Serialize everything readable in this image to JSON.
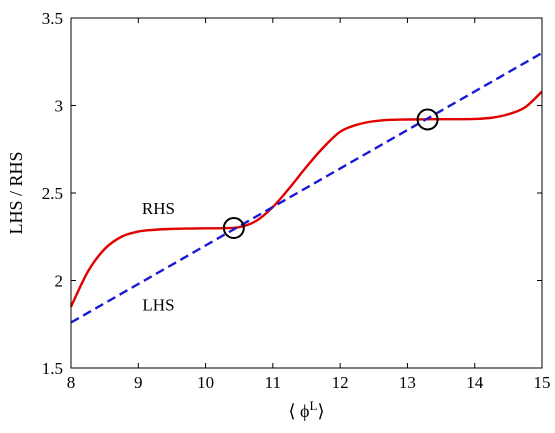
{
  "chart_data": {
    "type": "line",
    "title": "",
    "xlabel": "⟨ ϕ",
    "xlabel_sup": "L",
    "xlabel_close": "⟩",
    "ylabel": "LHS / RHS",
    "xlim": [
      8,
      15
    ],
    "ylim": [
      1.5,
      3.5
    ],
    "xticks": [
      "8",
      "9",
      "10",
      "11",
      "12",
      "13",
      "14",
      "15"
    ],
    "yticks": [
      "1.5",
      "2",
      "2.5",
      "3",
      "3.5"
    ],
    "grid": false,
    "legend": "none",
    "series": [
      {
        "name": "RHS",
        "color": "#e00000",
        "style": "solid",
        "x": [
          8.0,
          8.25,
          8.5,
          8.75,
          9.0,
          9.25,
          9.5,
          9.75,
          10.0,
          10.25,
          10.5,
          10.75,
          11.0,
          11.25,
          11.5,
          11.75,
          12.0,
          12.25,
          12.5,
          12.75,
          13.0,
          13.25,
          13.5,
          13.75,
          14.0,
          14.25,
          14.5,
          14.75,
          15.0
        ],
        "y": [
          1.85,
          2.05,
          2.18,
          2.25,
          2.28,
          2.29,
          2.295,
          2.297,
          2.298,
          2.299,
          2.305,
          2.34,
          2.42,
          2.53,
          2.65,
          2.76,
          2.85,
          2.89,
          2.91,
          2.918,
          2.92,
          2.921,
          2.922,
          2.922,
          2.923,
          2.93,
          2.95,
          2.99,
          3.08
        ]
      },
      {
        "name": "LHS",
        "color": "#1a1ad6",
        "style": "dashed",
        "x": [
          8,
          15
        ],
        "y": [
          1.76,
          3.3
        ]
      }
    ],
    "annotations": [
      {
        "text": "RHS",
        "x": 9.3,
        "y": 2.38
      },
      {
        "text": "LHS",
        "x": 9.3,
        "y": 1.83
      }
    ],
    "markers": [
      {
        "shape": "circle",
        "x": 10.42,
        "y": 2.3
      },
      {
        "shape": "circle",
        "x": 13.3,
        "y": 2.92
      }
    ]
  }
}
